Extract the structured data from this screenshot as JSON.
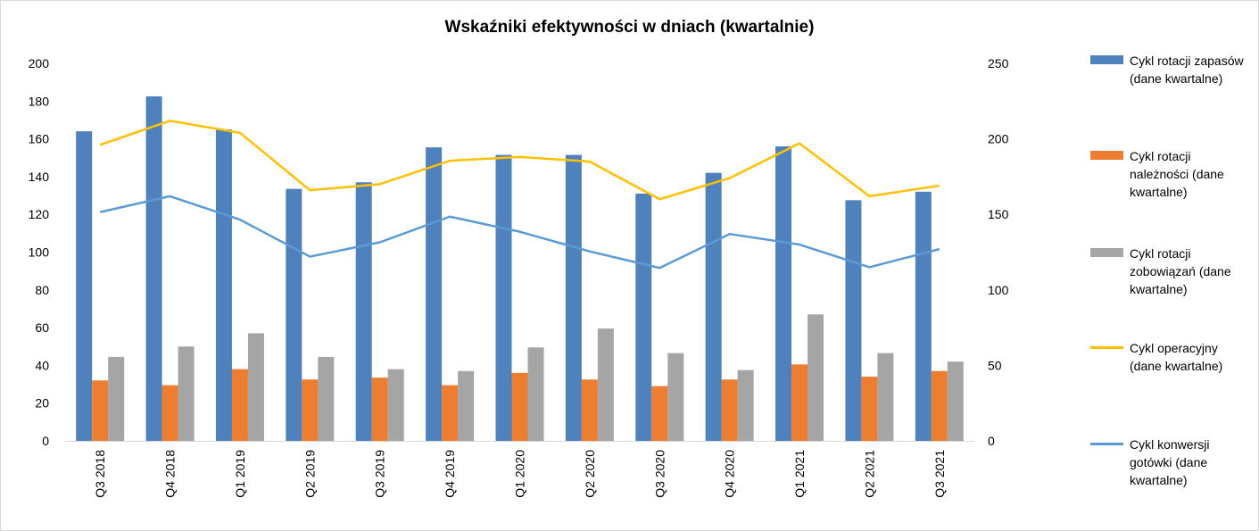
{
  "chart_data": {
    "type": "bar",
    "title": "Wskaźniki efektywności w dniach (kwartalnie)",
    "categories": [
      "Q3 2018",
      "Q4 2018",
      "Q1 2019",
      "Q2 2019",
      "Q3 2019",
      "Q4 2019",
      "Q1 2020",
      "Q2 2020",
      "Q3 2020",
      "Q4 2020",
      "Q1 2021",
      "Q2 2021",
      "Q3 2021"
    ],
    "y_left": {
      "min": 0,
      "max": 200,
      "ticks": [
        "0",
        "20",
        "40",
        "60",
        "80",
        "100",
        "120",
        "140",
        "160",
        "180",
        "200"
      ]
    },
    "y_right": {
      "min": 0,
      "max": 250,
      "ticks": [
        "0",
        "50",
        "100",
        "150",
        "200",
        "250"
      ]
    },
    "grid": false,
    "legend_position": "right",
    "series": [
      {
        "name": "Cykl rotacji zapasów (dane kwartalne)",
        "kind": "bar",
        "axis": "left",
        "color": "#4f81bd",
        "values": [
          164,
          182.5,
          165,
          133.5,
          137,
          155.5,
          151.5,
          151.5,
          131,
          142,
          156,
          127.5,
          132
        ]
      },
      {
        "name": "Cykl rotacji należności (dane kwartalne)",
        "kind": "bar",
        "axis": "left",
        "color": "#ed7d31",
        "values": [
          32,
          29.5,
          38,
          32.5,
          33.5,
          29.5,
          36,
          32.5,
          29,
          32.5,
          40.5,
          34,
          37
        ]
      },
      {
        "name": "Cykl rotacji zobowiązań (dane kwartalne)",
        "kind": "bar",
        "axis": "left",
        "color": "#a5a5a5",
        "values": [
          44.5,
          50,
          57,
          44.5,
          38,
          37,
          49.5,
          59.5,
          46.5,
          37.5,
          67,
          46.5,
          42
        ]
      },
      {
        "name": "Cykl operacyjny (dane kwartalne)",
        "kind": "line",
        "axis": "right",
        "color": "#ffc000",
        "values": [
          196,
          212,
          204,
          166,
          170,
          185.5,
          188,
          185,
          160,
          174,
          197,
          162,
          169
        ]
      },
      {
        "name": "Cykl konwersji gotówki (dane kwartalne)",
        "kind": "line",
        "axis": "right",
        "color": "#5b9bd5",
        "values": [
          151.5,
          162,
          146.5,
          122,
          131.5,
          148.5,
          138.5,
          125.5,
          114.5,
          137,
          130,
          115,
          127
        ]
      }
    ]
  }
}
